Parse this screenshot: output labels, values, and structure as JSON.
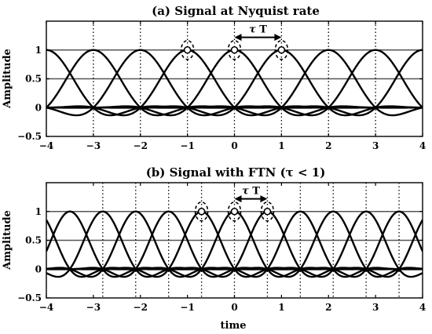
{
  "chart_data": [
    {
      "type": "line",
      "title": "(a) Signal at Nyquist rate",
      "ylabel": "Amplitude",
      "xlabel": "",
      "xlim": [
        -4,
        4
      ],
      "ylim": [
        -0.5,
        1.5
      ],
      "xticks": [
        -4,
        -3,
        -2,
        -1,
        0,
        1,
        2,
        3,
        4
      ],
      "xtick_labels": [
        "−4",
        "−3",
        "−2",
        "−1",
        "0",
        "1",
        "2",
        "3",
        "4"
      ],
      "yticks": [
        -0.5,
        0,
        0.5,
        1
      ],
      "ytick_labels": [
        "−0.5",
        "0",
        "0.5",
        "1"
      ],
      "hlines": [
        0,
        0.5,
        1
      ],
      "pulse_spacing": 1,
      "pulse_centers": [
        -4,
        -3,
        -2,
        -1,
        0,
        1,
        2,
        3,
        4
      ],
      "sample_lines": [
        -3,
        -2,
        -1,
        0,
        1,
        2,
        3
      ],
      "highlight_centers": [
        -1,
        0,
        1
      ],
      "annotation": {
        "italic": "τ",
        "text": " T",
        "from": 0,
        "to": 1
      },
      "grid": false,
      "legend": "none"
    },
    {
      "type": "line",
      "title": "(b) Signal with FTN (τ < 1)",
      "ylabel": "Amplitude",
      "xlabel": "time",
      "xlim": [
        -4,
        4
      ],
      "ylim": [
        -0.5,
        1.5
      ],
      "xticks": [
        -4,
        -3,
        -2,
        -1,
        0,
        1,
        2,
        3,
        4
      ],
      "xtick_labels": [
        "−4",
        "−3",
        "−2",
        "−1",
        "0",
        "1",
        "2",
        "3",
        "4"
      ],
      "yticks": [
        -0.5,
        0,
        0.5,
        1
      ],
      "ytick_labels": [
        "−0.5",
        "0",
        "0.5",
        "1"
      ],
      "hlines": [
        0,
        0.5,
        1
      ],
      "pulse_spacing": 0.7,
      "pulse_centers": [
        -4.2,
        -3.5,
        -2.8,
        -2.1,
        -1.4,
        -0.7,
        0,
        0.7,
        1.4,
        2.1,
        2.8,
        3.5,
        4.2
      ],
      "sample_lines": [
        -2.8,
        -2.1,
        -1.4,
        -0.7,
        0,
        0.7,
        1.4,
        2.1,
        2.8,
        3.5
      ],
      "highlight_centers": [
        -0.7,
        0,
        0.7
      ],
      "annotation": {
        "italic": "τ",
        "text": " T",
        "from": 0,
        "to": 0.7
      },
      "grid": false,
      "legend": "none"
    }
  ]
}
